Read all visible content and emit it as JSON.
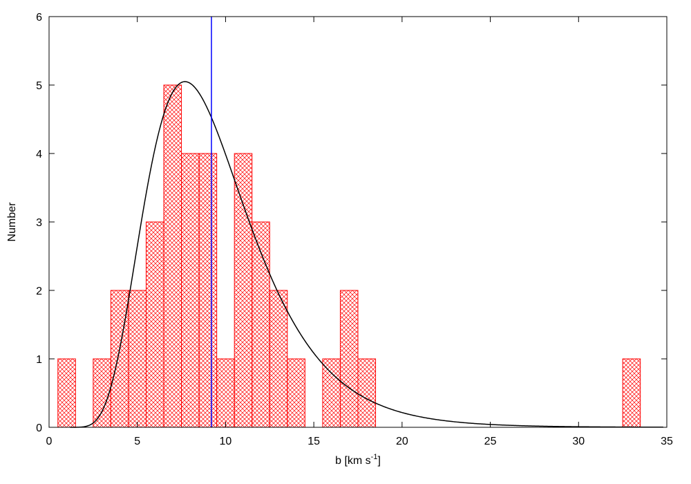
{
  "chart_data": {
    "type": "bar",
    "title": "",
    "xlabel": "b [km s",
    "xlabel_sup": "-1",
    "xlabel_close": "]",
    "ylabel": "Number",
    "xlim": [
      0,
      35
    ],
    "ylim": [
      0,
      6
    ],
    "xticks": [
      0,
      5,
      10,
      15,
      20,
      25,
      30,
      35
    ],
    "yticks": [
      0,
      1,
      2,
      3,
      4,
      5,
      6
    ],
    "grid": false,
    "legend": "none",
    "bin_width": 1,
    "bins": [
      {
        "x": 1,
        "count": 1
      },
      {
        "x": 3,
        "count": 1
      },
      {
        "x": 4,
        "count": 2
      },
      {
        "x": 5,
        "count": 2
      },
      {
        "x": 6,
        "count": 3
      },
      {
        "x": 7,
        "count": 5
      },
      {
        "x": 8,
        "count": 4
      },
      {
        "x": 9,
        "count": 4
      },
      {
        "x": 10,
        "count": 1
      },
      {
        "x": 11,
        "count": 4
      },
      {
        "x": 12,
        "count": 3
      },
      {
        "x": 13,
        "count": 2
      },
      {
        "x": 14,
        "count": 1
      },
      {
        "x": 16,
        "count": 1
      },
      {
        "x": 17,
        "count": 2
      },
      {
        "x": 18,
        "count": 1
      },
      {
        "x": 33,
        "count": 1
      }
    ],
    "bar_color": "#ff0000",
    "vline": {
      "x": 9.2,
      "color": "#0000ff"
    },
    "fit_curve": {
      "type": "lognormal",
      "peak": 5.05,
      "mode": 7.7,
      "sigma": 0.38,
      "color": "#000000"
    }
  }
}
